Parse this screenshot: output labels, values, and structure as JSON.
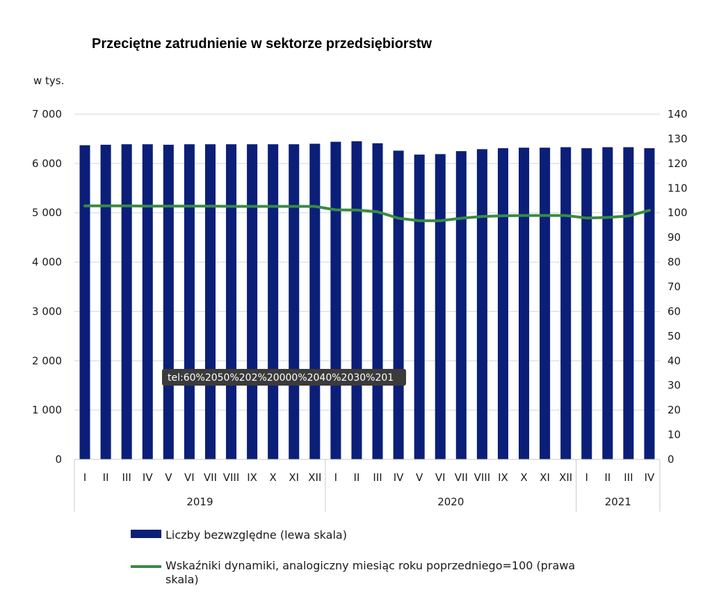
{
  "chart_data": {
    "type": "bar",
    "title": "Przeciętne zatrudnienie w sektorze przedsiębiorstw",
    "ylabel": "w tys.",
    "ylim": [
      0,
      7000
    ],
    "yticks": [
      "7 000",
      "6 000",
      "5 000",
      "4 000",
      "3 000",
      "2 000",
      "1 000",
      "0"
    ],
    "y2lim": [
      0,
      140
    ],
    "y2ticks": [
      "140",
      "130",
      "120",
      "110",
      "100",
      "90",
      "80",
      "70",
      "60",
      "50",
      "40",
      "30",
      "20",
      "10",
      "0"
    ],
    "categories": [
      "I",
      "II",
      "III",
      "IV",
      "V",
      "VI",
      "VII",
      "VIII",
      "IX",
      "X",
      "XI",
      "XII",
      "I",
      "II",
      "III",
      "IV",
      "V",
      "VI",
      "VII",
      "VIII",
      "IX",
      "X",
      "XI",
      "XII",
      "I",
      "II",
      "III",
      "IV"
    ],
    "year_groups": [
      {
        "label": "2019",
        "count": 12
      },
      {
        "label": "2020",
        "count": 12
      },
      {
        "label": "2021",
        "count": 4
      }
    ],
    "series": [
      {
        "name": "Liczby bezwzględne (lewa skala)",
        "axis": "left",
        "kind": "bar",
        "color": "#0b1f78",
        "values": [
          6370,
          6380,
          6390,
          6390,
          6380,
          6390,
          6390,
          6390,
          6390,
          6390,
          6390,
          6400,
          6440,
          6450,
          6410,
          6260,
          6180,
          6190,
          6250,
          6290,
          6310,
          6320,
          6320,
          6330,
          6310,
          6330,
          6330,
          6310
        ]
      },
      {
        "name": "Wskaźniki dynamiki, analogiczny miesiąc roku poprzedniego=100 (prawa skala)",
        "axis": "right",
        "kind": "line",
        "color": "#3a8a45",
        "values": [
          102.8,
          102.8,
          102.8,
          102.7,
          102.7,
          102.7,
          102.7,
          102.6,
          102.6,
          102.6,
          102.6,
          102.6,
          101.2,
          101.1,
          100.4,
          97.8,
          96.8,
          96.8,
          97.8,
          98.5,
          98.8,
          98.9,
          98.9,
          98.9,
          97.9,
          98.1,
          98.7,
          101.0
        ]
      }
    ],
    "legend_placement": "bottom-left",
    "grid": true
  },
  "tooltip": {
    "text": "tel:60%2050%202%20000%2040%2030%201"
  }
}
